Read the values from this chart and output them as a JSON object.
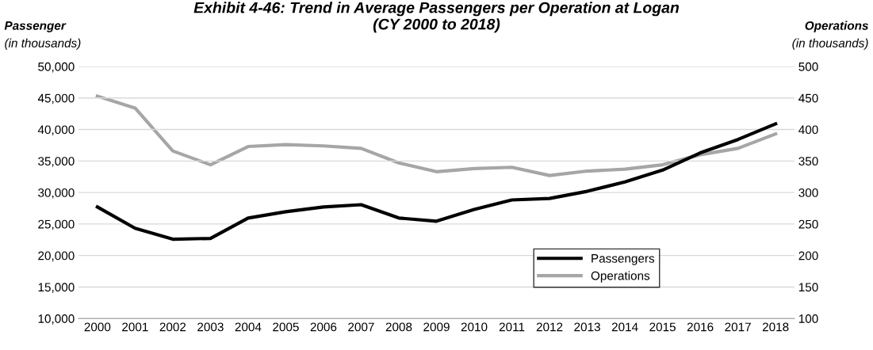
{
  "chart_data": {
    "type": "line",
    "title": "Exhibit 4-46: Trend in Average Passengers per Operation at Logan\n(CY 2000 to 2018)",
    "ylabel": "Passenger",
    "y2label": "Operations",
    "annotations": [
      "(in thousands)",
      "(in thousands)"
    ],
    "categories": [
      "2000",
      "2001",
      "2002",
      "2003",
      "2004",
      "2005",
      "2006",
      "2007",
      "2008",
      "2009",
      "2010",
      "2011",
      "2012",
      "2013",
      "2014",
      "2015",
      "2016",
      "2017",
      "2018"
    ],
    "series": [
      {
        "name": "Passengers",
        "color": "#000000",
        "values": [
          27700,
          24330,
          22590,
          22710,
          25950,
          26950,
          27700,
          28070,
          25950,
          25450,
          27320,
          28820,
          29060,
          30190,
          31680,
          33550,
          36290,
          38410,
          40900
        ]
      },
      {
        "name": "Operations",
        "color": "#a6a6a6",
        "axis": "y2",
        "values": [
          453,
          434,
          366,
          344,
          373,
          376,
          374,
          370,
          347,
          333,
          338,
          340,
          327,
          334,
          337,
          344,
          360,
          370,
          393
        ]
      }
    ],
    "ylim": [
      10000,
      50000
    ],
    "yticks": [
      {
        "value": 10000,
        "label": "10,000"
      },
      {
        "value": 15000,
        "label": "15,000"
      },
      {
        "value": 20000,
        "label": "20,000"
      },
      {
        "value": 25000,
        "label": "25,000"
      },
      {
        "value": 30000,
        "label": "30,000"
      },
      {
        "value": 35000,
        "label": "35,000"
      },
      {
        "value": 40000,
        "label": "40,000"
      },
      {
        "value": 45000,
        "label": "45,000"
      },
      {
        "value": 50000,
        "label": "50,000"
      }
    ],
    "y2lim": [
      100,
      500
    ],
    "y2ticks": [
      100,
      150,
      200,
      250,
      300,
      350,
      400,
      450,
      500
    ],
    "grid": "y",
    "legend": "bottom right",
    "marker": "none",
    "line_style": "solid"
  }
}
